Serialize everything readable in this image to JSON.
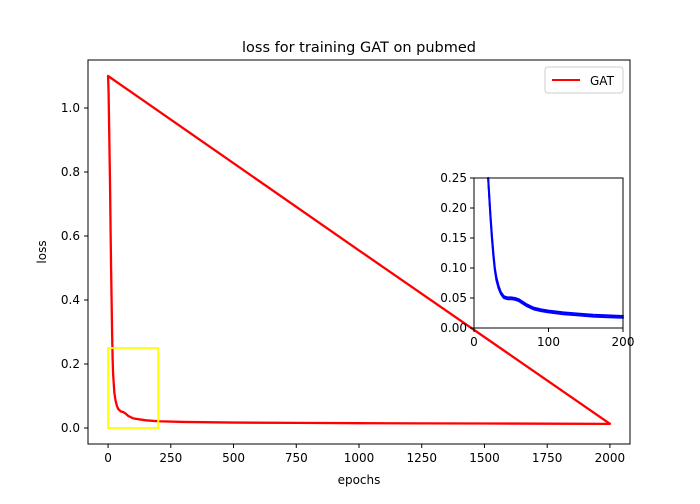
{
  "chart_data": {
    "type": "line",
    "title": "loss for training GAT on pubmed",
    "xlabel": "epochs",
    "ylabel": "loss",
    "xlim": [
      -80,
      2080
    ],
    "ylim": [
      -0.05,
      1.15
    ],
    "xticks": [
      "0",
      "250",
      "500",
      "750",
      "1000",
      "1250",
      "1500",
      "1750",
      "2000"
    ],
    "xtick_values": [
      0,
      250,
      500,
      750,
      1000,
      1250,
      1500,
      1750,
      2000
    ],
    "yticks": [
      "0.0",
      "0.2",
      "0.4",
      "0.6",
      "0.8",
      "1.0"
    ],
    "ytick_values": [
      0.0,
      0.2,
      0.4,
      0.6,
      0.8,
      1.0
    ],
    "grid": false,
    "legend": {
      "placement": "upper right",
      "entries": [
        {
          "label": "GAT",
          "color": "#ff0000"
        }
      ]
    },
    "series": [
      {
        "name": "GAT",
        "color": "#ff0000",
        "x": [
          0,
          2,
          4,
          6,
          8,
          10,
          12,
          14,
          16,
          18,
          20,
          25,
          30,
          35,
          40,
          50,
          60,
          70,
          80,
          100,
          150,
          200,
          300,
          500,
          750,
          1000,
          1250,
          1500,
          1750,
          2000,
          1000,
          0
        ],
        "y": [
          1.1,
          1.05,
          0.95,
          0.85,
          0.75,
          0.62,
          0.5,
          0.4,
          0.3,
          0.22,
          0.17,
          0.11,
          0.085,
          0.07,
          0.06,
          0.052,
          0.05,
          0.045,
          0.038,
          0.03,
          0.024,
          0.021,
          0.019,
          0.017,
          0.016,
          0.015,
          0.0145,
          0.014,
          0.0135,
          0.013,
          0.555,
          1.1
        ]
      }
    ],
    "highlight_box": {
      "color": "#ffff00",
      "x": [
        0,
        200
      ],
      "y": [
        0,
        0.25
      ]
    },
    "inset": {
      "xlim": [
        0,
        200
      ],
      "ylim": [
        0,
        0.25
      ],
      "xticks": [
        "0",
        "100",
        "200"
      ],
      "xtick_values": [
        0,
        100,
        200
      ],
      "yticks": [
        "0.00",
        "0.05",
        "0.10",
        "0.15",
        "0.20",
        "0.25"
      ],
      "ytick_values": [
        0.0,
        0.05,
        0.1,
        0.15,
        0.2,
        0.25
      ],
      "series": [
        {
          "color": "#0000ff",
          "x": [
            19,
            20,
            22,
            24,
            26,
            28,
            30,
            33,
            36,
            40,
            45,
            50,
            55,
            60,
            65,
            70,
            80,
            90,
            100,
            120,
            140,
            160,
            180,
            200
          ],
          "y": [
            0.25,
            0.23,
            0.19,
            0.155,
            0.125,
            0.1,
            0.085,
            0.07,
            0.06,
            0.053,
            0.051,
            0.051,
            0.05,
            0.048,
            0.044,
            0.04,
            0.034,
            0.031,
            0.029,
            0.026,
            0.024,
            0.022,
            0.021,
            0.02
          ]
        },
        {
          "color": "#0000ff",
          "x": [
            19,
            20,
            22,
            24,
            26,
            28,
            30,
            33,
            36,
            40,
            45,
            50,
            55,
            60,
            65,
            70,
            80,
            90,
            100,
            120,
            140,
            160,
            180,
            200
          ],
          "y": [
            0.25,
            0.228,
            0.186,
            0.15,
            0.12,
            0.096,
            0.08,
            0.066,
            0.057,
            0.05,
            0.048,
            0.048,
            0.047,
            0.045,
            0.041,
            0.037,
            0.031,
            0.028,
            0.026,
            0.023,
            0.021,
            0.019,
            0.018,
            0.017
          ]
        }
      ]
    }
  }
}
